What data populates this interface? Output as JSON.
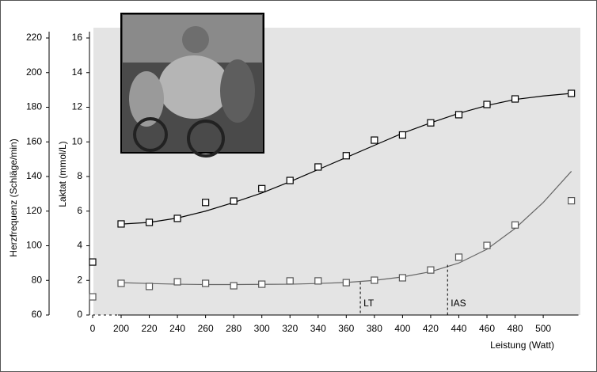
{
  "chart_data": {
    "type": "line",
    "y_title": "Herzfrequenz (Schläge/min)",
    "y2_title": "Laktat (mmol/L)",
    "x_title": "Leistung (Watt)",
    "x": [
      0,
      200,
      220,
      240,
      260,
      280,
      300,
      320,
      340,
      360,
      380,
      400,
      420,
      440,
      460,
      480,
      520
    ],
    "xlim": [
      0,
      525
    ],
    "xticks": [
      0,
      200,
      220,
      240,
      260,
      280,
      300,
      320,
      340,
      360,
      380,
      400,
      420,
      440,
      460,
      480,
      500
    ],
    "ylim": [
      60,
      220
    ],
    "yticks": [
      60,
      80,
      100,
      120,
      140,
      160,
      180,
      200,
      220
    ],
    "y2lim": [
      0,
      16
    ],
    "y2ticks": [
      0,
      2,
      4,
      6,
      8,
      10,
      12,
      14,
      16
    ],
    "series": [
      {
        "values": [
          90.6,
          112.6,
          113.5,
          115.8,
          125,
          125.8,
          133,
          137.7,
          145.5,
          152,
          161,
          164,
          171,
          175.7,
          181.6,
          184.8,
          188
        ],
        "color": "#000000"
      },
      {
        "axis": "y2",
        "values": [
          1.05,
          1.83,
          1.65,
          1.92,
          1.83,
          1.69,
          1.78,
          1.97,
          1.97,
          1.87,
          2.01,
          2.15,
          2.6,
          3.34,
          4.02,
          5.2,
          6.6
        ],
        "color": "#555555"
      }
    ],
    "fits": {
      "x": [
        200,
        220,
        240,
        260,
        280,
        300,
        320,
        340,
        360,
        380,
        400,
        420,
        440,
        460,
        480,
        500,
        520
      ],
      "heart_rate": [
        112.5,
        113.5,
        116,
        120,
        125,
        130.5,
        137,
        144,
        151,
        158,
        165,
        171,
        176.5,
        181,
        184.5,
        186.5,
        188
      ],
      "lactate": [
        1.87,
        1.82,
        1.78,
        1.76,
        1.76,
        1.77,
        1.78,
        1.82,
        1.88,
        2.0,
        2.2,
        2.5,
        3.0,
        3.8,
        5.0,
        6.5,
        8.3
      ]
    },
    "thresholds": [
      {
        "label": "LT",
        "x": 370,
        "lactate": 1.9
      },
      {
        "label": "IAS",
        "x": 432,
        "lactate": 2.9
      }
    ]
  }
}
